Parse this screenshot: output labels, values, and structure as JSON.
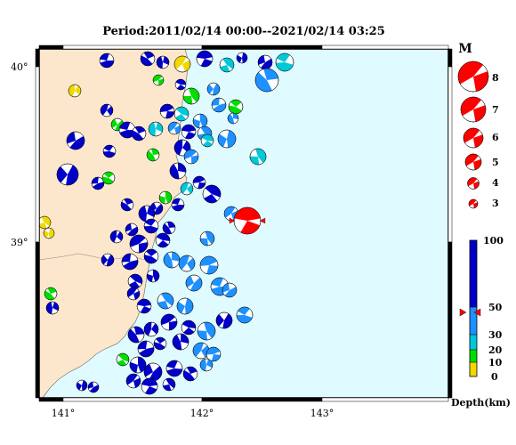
{
  "title": "Period:2011/02/14 00:00--2021/02/14 03:25",
  "lat_labels": [
    "40°",
    "39°"
  ],
  "lon_labels": [
    "141°",
    "142°",
    "143°"
  ],
  "magnitude_legend": {
    "header": "M",
    "items": [
      "8",
      "7",
      "6",
      "5",
      "4",
      "3"
    ]
  },
  "depth_legend": {
    "ticks": [
      "100",
      "50",
      "30",
      "20",
      "10",
      "0"
    ],
    "axis_label": "Depth(km)",
    "colors": {
      "0-10": "#f0d800",
      "10-20": "#00dd00",
      "20-30": "#00c8d8",
      "30-50": "#1e90ff",
      "50-100": "#0000c8"
    },
    "marker": "50"
  },
  "colors": {
    "sea": "#e0fbff",
    "land": "#fde7cc",
    "mechanism_compression": "#ff0000"
  }
}
